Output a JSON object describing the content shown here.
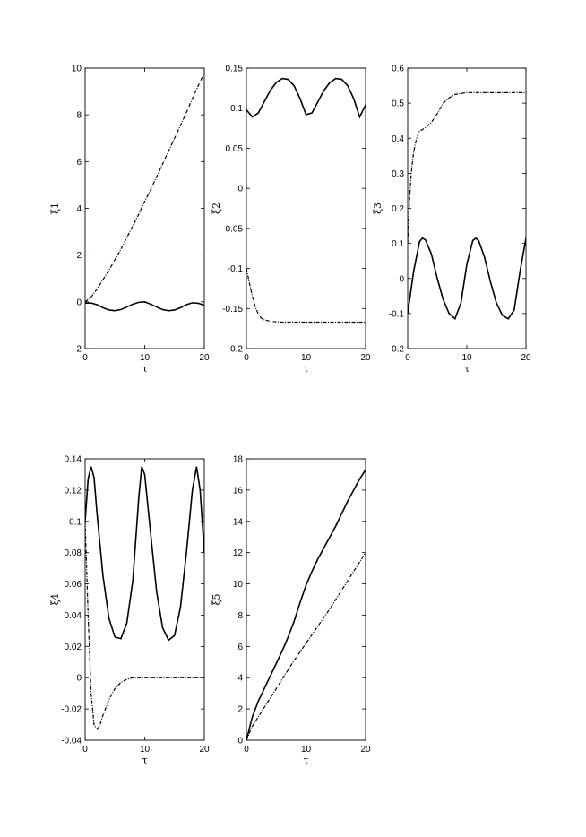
{
  "chart_data": [
    {
      "type": "line",
      "xlabel": "τ",
      "ylabel": "ξ1",
      "xlim": [
        0,
        20
      ],
      "ylim": [
        -2,
        10
      ],
      "xticks": [
        0,
        10,
        20
      ],
      "xtick_labels": [
        "0",
        "10",
        "20"
      ],
      "yticks": [
        -2,
        0,
        2,
        4,
        6,
        8,
        10
      ],
      "ytick_labels": [
        "-2",
        "0",
        "2",
        "4",
        "6",
        "8",
        "10"
      ],
      "grid": false,
      "series": [
        {
          "style": "solid",
          "x": [
            0,
            1,
            2,
            3,
            4,
            5,
            6,
            7,
            8,
            9,
            10,
            11,
            12,
            13,
            14,
            15,
            16,
            17,
            18,
            19,
            20
          ],
          "y": [
            -0.05,
            -0.05,
            -0.12,
            -0.25,
            -0.35,
            -0.38,
            -0.33,
            -0.22,
            -0.1,
            -0.02,
            0.0,
            -0.1,
            -0.22,
            -0.33,
            -0.38,
            -0.35,
            -0.25,
            -0.12,
            -0.04,
            -0.06,
            -0.15
          ]
        },
        {
          "style": "dashdot",
          "x": [
            0,
            1,
            2,
            3,
            4,
            5,
            6,
            7,
            8,
            9,
            10,
            11,
            12,
            13,
            14,
            15,
            16,
            17,
            18,
            19,
            20
          ],
          "y": [
            0.0,
            0.2,
            0.55,
            0.95,
            1.35,
            1.8,
            2.25,
            2.75,
            3.25,
            3.75,
            4.3,
            4.8,
            5.35,
            5.9,
            6.45,
            7.0,
            7.55,
            8.1,
            8.7,
            9.25,
            9.8
          ]
        }
      ]
    },
    {
      "type": "line",
      "xlabel": "τ",
      "ylabel": "ξ2",
      "xlim": [
        0,
        20
      ],
      "ylim": [
        -0.2,
        0.15
      ],
      "xticks": [
        0,
        10,
        20
      ],
      "xtick_labels": [
        "0",
        "10",
        "20"
      ],
      "yticks": [
        -0.2,
        -0.15,
        -0.1,
        -0.05,
        0,
        0.05,
        0.1,
        0.15
      ],
      "ytick_labels": [
        "-0.2",
        "-0.15",
        "-0.1",
        "-0.05",
        "0",
        "0.05",
        "0.1",
        "0.15"
      ],
      "grid": false,
      "series": [
        {
          "style": "solid",
          "x": [
            0,
            1,
            2,
            3,
            4,
            5,
            6,
            7,
            8,
            9,
            10,
            11,
            12,
            13,
            14,
            15,
            16,
            17,
            18,
            19,
            20
          ],
          "y": [
            0.098,
            0.089,
            0.094,
            0.108,
            0.122,
            0.132,
            0.137,
            0.136,
            0.128,
            0.112,
            0.092,
            0.094,
            0.108,
            0.122,
            0.132,
            0.137,
            0.136,
            0.128,
            0.112,
            0.089,
            0.104
          ]
        },
        {
          "style": "dashdot",
          "x": [
            0,
            0.5,
            1,
            1.5,
            2,
            2.5,
            3,
            4,
            5,
            6,
            8,
            10,
            12,
            14,
            16,
            18,
            20
          ],
          "y": [
            -0.1,
            -0.118,
            -0.135,
            -0.148,
            -0.157,
            -0.162,
            -0.164,
            -0.166,
            -0.1665,
            -0.167,
            -0.167,
            -0.167,
            -0.167,
            -0.167,
            -0.167,
            -0.167,
            -0.167
          ]
        }
      ]
    },
    {
      "type": "line",
      "xlabel": "τ",
      "ylabel": "ξ3",
      "xlim": [
        0,
        20
      ],
      "ylim": [
        -0.2,
        0.6
      ],
      "xticks": [
        0,
        10,
        20
      ],
      "xtick_labels": [
        "0",
        "10",
        "20"
      ],
      "yticks": [
        -0.2,
        -0.1,
        0,
        0.1,
        0.2,
        0.3,
        0.4,
        0.5,
        0.6
      ],
      "ytick_labels": [
        "-0.2",
        "-0.1",
        "0",
        "0.1",
        "0.2",
        "0.3",
        "0.4",
        "0.5",
        "0.6"
      ],
      "grid": false,
      "series": [
        {
          "style": "solid",
          "x": [
            0,
            1,
            2,
            2.5,
            3,
            4,
            5,
            6,
            7,
            8,
            9,
            10,
            11,
            11.5,
            12,
            13,
            14,
            15,
            16,
            17,
            18,
            19,
            20
          ],
          "y": [
            -0.1,
            0.02,
            0.105,
            0.115,
            0.11,
            0.07,
            0.0,
            -0.06,
            -0.1,
            -0.115,
            -0.07,
            0.04,
            0.108,
            0.115,
            0.108,
            0.06,
            -0.01,
            -0.07,
            -0.105,
            -0.115,
            -0.09,
            0.02,
            0.115
          ]
        },
        {
          "style": "dashdot",
          "x": [
            0,
            0.3,
            0.6,
            1,
            1.5,
            2,
            3,
            4,
            5,
            6,
            7,
            8,
            10,
            12,
            14,
            16,
            18,
            20
          ],
          "y": [
            0.1,
            0.22,
            0.3,
            0.36,
            0.4,
            0.42,
            0.43,
            0.445,
            0.47,
            0.5,
            0.515,
            0.525,
            0.53,
            0.53,
            0.53,
            0.53,
            0.53,
            0.53
          ]
        }
      ]
    },
    {
      "type": "line",
      "xlabel": "τ",
      "ylabel": "ξ4",
      "xlim": [
        0,
        20
      ],
      "ylim": [
        -0.04,
        0.14
      ],
      "xticks": [
        0,
        10,
        20
      ],
      "xtick_labels": [
        "0",
        "10",
        "20"
      ],
      "yticks": [
        -0.04,
        -0.02,
        0,
        0.02,
        0.04,
        0.06,
        0.08,
        0.1,
        0.12,
        0.14
      ],
      "ytick_labels": [
        "-0.04",
        "-0.02",
        "0",
        "0.02",
        "0.04",
        "0.06",
        "0.08",
        "0.1",
        "0.12",
        "0.14"
      ],
      "grid": false,
      "series": [
        {
          "style": "solid",
          "x": [
            0,
            0.5,
            1,
            1.5,
            2,
            3,
            4,
            5,
            6,
            7,
            8,
            9,
            9.5,
            10,
            11,
            12,
            13,
            14,
            15,
            16,
            17,
            18,
            18.7,
            19.3,
            20
          ],
          "y": [
            0.1,
            0.127,
            0.135,
            0.128,
            0.105,
            0.065,
            0.038,
            0.026,
            0.025,
            0.035,
            0.062,
            0.115,
            0.135,
            0.13,
            0.092,
            0.055,
            0.032,
            0.024,
            0.027,
            0.045,
            0.08,
            0.12,
            0.135,
            0.12,
            0.08
          ]
        },
        {
          "style": "dashdot",
          "x": [
            0,
            0.5,
            1,
            1.5,
            2,
            2.5,
            3,
            4,
            5,
            6,
            7,
            8,
            10,
            12,
            14,
            16,
            18,
            20
          ],
          "y": [
            0.1,
            0.04,
            -0.01,
            -0.03,
            -0.033,
            -0.03,
            -0.024,
            -0.014,
            -0.007,
            -0.003,
            -0.001,
            0.0,
            0.0,
            0.0,
            0.0,
            0.0,
            0.0,
            0.0
          ]
        }
      ]
    },
    {
      "type": "line",
      "xlabel": "τ",
      "ylabel": "ξ5",
      "xlim": [
        0,
        20
      ],
      "ylim": [
        0,
        18
      ],
      "xticks": [
        0,
        10,
        20
      ],
      "xtick_labels": [
        "0",
        "10",
        "20"
      ],
      "yticks": [
        0,
        2,
        4,
        6,
        8,
        10,
        12,
        14,
        16,
        18
      ],
      "ytick_labels": [
        "0",
        "2",
        "4",
        "6",
        "8",
        "10",
        "12",
        "14",
        "16",
        "18"
      ],
      "grid": false,
      "series": [
        {
          "style": "solid",
          "x": [
            0,
            1,
            2,
            3,
            4,
            5,
            6,
            7,
            8,
            9,
            10,
            11,
            12,
            13,
            14,
            15,
            16,
            17,
            18,
            19,
            20
          ],
          "y": [
            0.0,
            1.5,
            2.5,
            3.3,
            4.1,
            4.9,
            5.7,
            6.6,
            7.6,
            8.8,
            9.9,
            10.8,
            11.6,
            12.3,
            13.0,
            13.7,
            14.5,
            15.3,
            16.0,
            16.7,
            17.3
          ]
        },
        {
          "style": "dashdot",
          "x": [
            0,
            1,
            2,
            4,
            6,
            8,
            10,
            12,
            14,
            16,
            18,
            20
          ],
          "y": [
            0.0,
            0.9,
            1.5,
            2.7,
            3.9,
            5.1,
            6.2,
            7.3,
            8.4,
            9.6,
            10.8,
            12.0
          ]
        }
      ]
    }
  ]
}
